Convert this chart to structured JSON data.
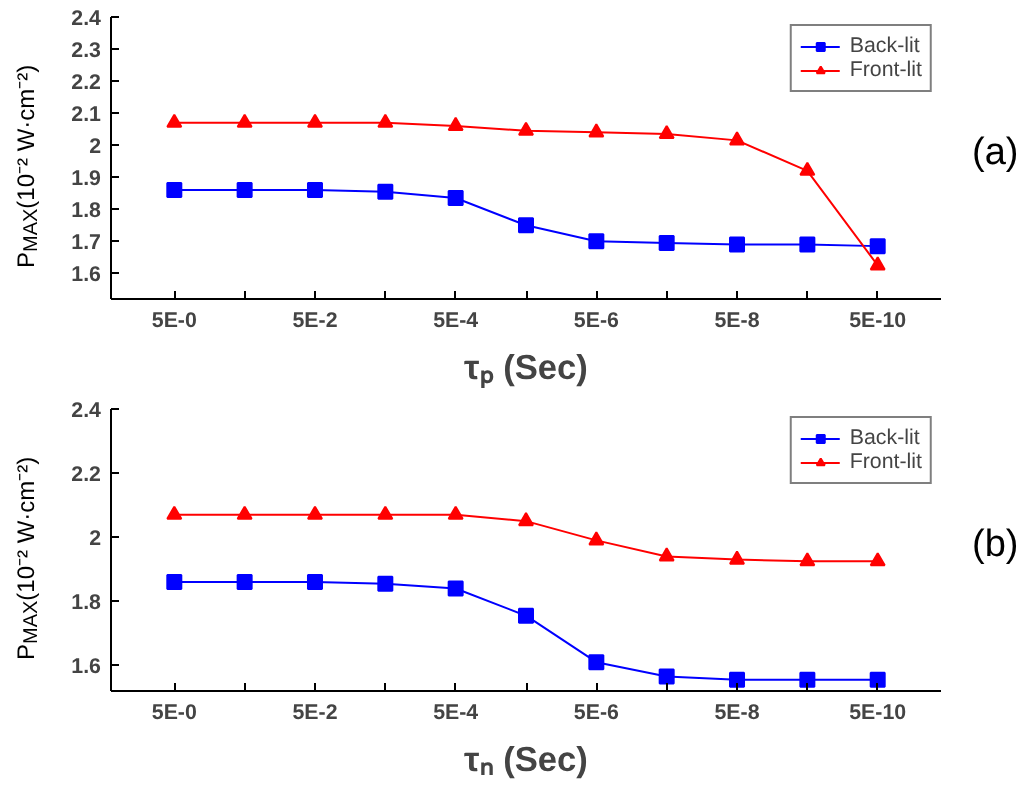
{
  "chart_data": [
    {
      "type": "line",
      "xlabel": "τₚ (Sec)",
      "ylabel": "P$_{MAX}$(10⁻² W·cm⁻²)",
      "annotations": [
        "(a)"
      ],
      "categories": [
        "5E-0",
        null,
        "5E-2",
        null,
        "5E-4",
        null,
        "5E-6",
        null,
        "5E-8",
        null,
        "5E-10"
      ],
      "ylim": [
        1.52,
        2.4
      ],
      "yticks": [
        1.6,
        1.7,
        1.8,
        1.9,
        2.0,
        2.1,
        2.2,
        2.3,
        2.4
      ],
      "grid": false,
      "legend": "top right",
      "line_style": "solid",
      "series": [
        {
          "name": "Back-lit",
          "color": "#0000ff",
          "marker": "square",
          "values": [
            1.86,
            1.86,
            1.86,
            1.855,
            1.835,
            1.75,
            1.7,
            1.695,
            1.69,
            1.69,
            1.685
          ]
        },
        {
          "name": "Front-lit",
          "color": "#ff0000",
          "marker": "triangle",
          "values": [
            2.07,
            2.07,
            2.07,
            2.07,
            2.06,
            2.045,
            2.04,
            2.035,
            2.015,
            1.92,
            1.625
          ]
        }
      ]
    },
    {
      "type": "line",
      "xlabel": "τₙ (Sec)",
      "ylabel": "P$_{MAX}$(10⁻² W·cm⁻²)",
      "annotations": [
        "(b)"
      ],
      "categories": [
        "5E-0",
        null,
        "5E-2",
        null,
        "5E-4",
        null,
        "5E-6",
        null,
        "5E-8",
        null,
        "5E-10"
      ],
      "ylim": [
        1.52,
        2.4
      ],
      "yticks": [
        1.6,
        1.8,
        2.0,
        2.2,
        2.4
      ],
      "grid": false,
      "legend": "top right",
      "line_style": "solid",
      "series": [
        {
          "name": "Back-lit",
          "color": "#0000ff",
          "marker": "square",
          "values": [
            1.86,
            1.86,
            1.86,
            1.855,
            1.84,
            1.755,
            1.61,
            1.565,
            1.555,
            1.555,
            1.555
          ]
        },
        {
          "name": "Front-lit",
          "color": "#ff0000",
          "marker": "triangle",
          "values": [
            2.07,
            2.07,
            2.07,
            2.07,
            2.07,
            2.05,
            1.99,
            1.94,
            1.93,
            1.925,
            1.925
          ]
        }
      ]
    }
  ]
}
